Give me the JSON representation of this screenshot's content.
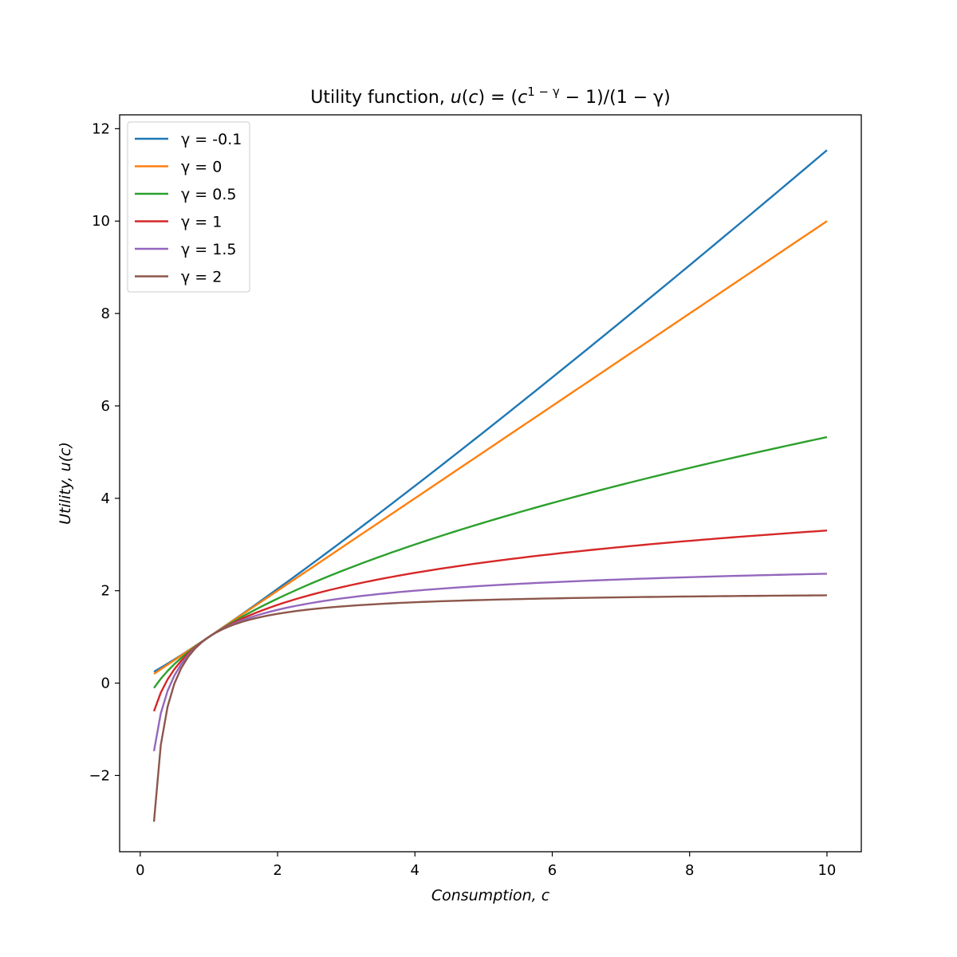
{
  "chart_data": {
    "type": "line",
    "title": "Utility function, u(c) = (c^(1−γ) − 1)/(1 − γ)",
    "title_parts": {
      "prefix": "Utility function, ",
      "u": "u",
      "c": "c",
      "exp": "1 − γ",
      "rest": " − 1)/(1 − γ)"
    },
    "xlabel": "Consumption, c",
    "ylabel": "Utility, u(c)",
    "xlim": [
      -0.3,
      10.5
    ],
    "ylim": [
      -3.65,
      12.3
    ],
    "xticks": [
      0,
      2,
      4,
      6,
      8,
      10
    ],
    "yticks": [
      -2,
      0,
      2,
      4,
      6,
      8,
      10,
      12
    ],
    "legend_position": "top-left",
    "grid": false,
    "x_range": [
      0.2,
      10
    ],
    "series": [
      {
        "name": "γ = -0.1",
        "gamma": -0.1,
        "color": "#1f77b4",
        "endpoints": {
          "x": [
            0.2,
            10
          ],
          "y": [
            0.24,
            11.53
          ]
        }
      },
      {
        "name": "γ = 0",
        "gamma": 0,
        "color": "#ff7f0e",
        "endpoints": {
          "x": [
            0.2,
            10
          ],
          "y": [
            0.2,
            10.0
          ]
        }
      },
      {
        "name": "γ = 0.5",
        "gamma": 0.5,
        "color": "#2ca02c",
        "endpoints": {
          "x": [
            0.2,
            10
          ],
          "y": [
            -0.11,
            5.32
          ]
        }
      },
      {
        "name": "γ = 1",
        "gamma": 1,
        "color": "#d62728",
        "endpoints": {
          "x": [
            0.2,
            10
          ],
          "y": [
            -0.61,
            3.3
          ]
        }
      },
      {
        "name": "γ = 1.5",
        "gamma": 1.5,
        "color": "#9467bd",
        "endpoints": {
          "x": [
            0.2,
            10
          ],
          "y": [
            -1.47,
            2.37
          ]
        }
      },
      {
        "name": "γ = 2",
        "gamma": 2,
        "color": "#8c564b",
        "endpoints": {
          "x": [
            0.2,
            10
          ],
          "y": [
            -3.0,
            1.9
          ]
        }
      }
    ]
  }
}
